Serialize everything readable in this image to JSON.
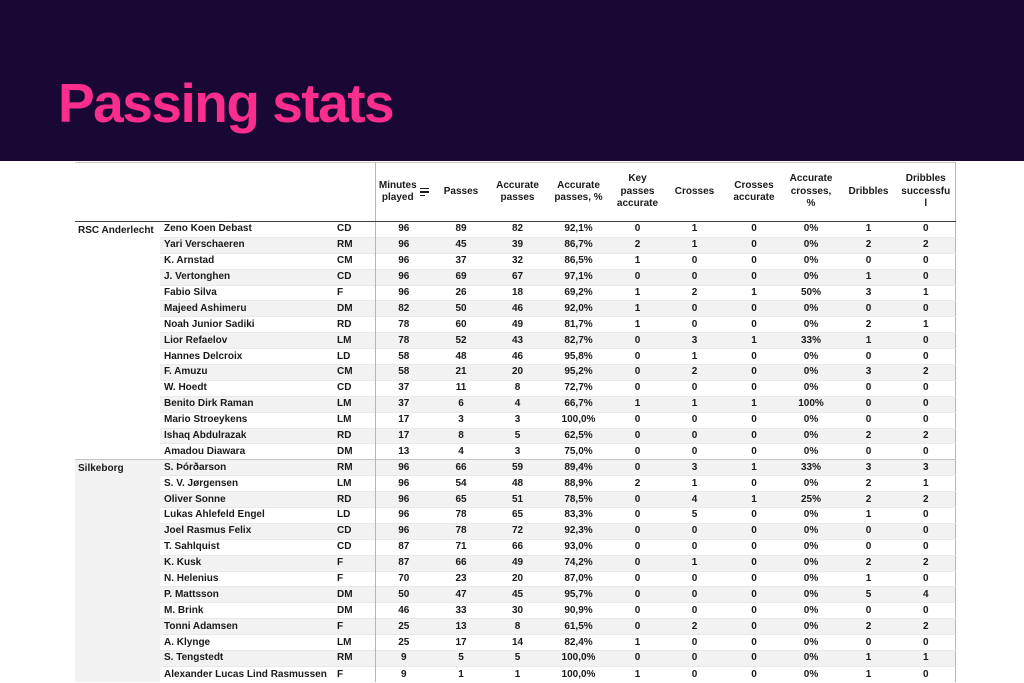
{
  "title": "Passing stats",
  "colors": {
    "banner_bg": "#190833",
    "title_text": "#fb2e8e",
    "table_text": "#1a1a1a",
    "row_stripe": "#f2f2f2",
    "table_border": "#b5b5b5"
  },
  "icons": {
    "sort": "sort-descending-bars"
  },
  "chart_data": {
    "type": "table",
    "title": "Passing stats",
    "sorted_column": "Minutes played",
    "sort_direction": "descending",
    "columns": [
      "Minutes played",
      "Passes",
      "Accurate passes",
      "Accurate passes, %",
      "Key passes accurate",
      "Crosses",
      "Crosses accurate",
      "Accurate crosses, %",
      "Dribbles",
      "Dribbles successful"
    ],
    "groups": [
      {
        "team": "RSC Anderlecht",
        "players": [
          {
            "name": "Zeno Koen Debast",
            "pos": "CD",
            "values": [
              "96",
              "89",
              "82",
              "92,1%",
              "0",
              "1",
              "0",
              "0%",
              "1",
              "0"
            ]
          },
          {
            "name": "Yari Verschaeren",
            "pos": "RM",
            "values": [
              "96",
              "45",
              "39",
              "86,7%",
              "2",
              "1",
              "0",
              "0%",
              "2",
              "2"
            ]
          },
          {
            "name": "K. Arnstad",
            "pos": "CM",
            "values": [
              "96",
              "37",
              "32",
              "86,5%",
              "1",
              "0",
              "0",
              "0%",
              "0",
              "0"
            ]
          },
          {
            "name": "J. Vertonghen",
            "pos": "CD",
            "values": [
              "96",
              "69",
              "67",
              "97,1%",
              "0",
              "0",
              "0",
              "0%",
              "1",
              "0"
            ]
          },
          {
            "name": "Fabio Silva",
            "pos": "F",
            "values": [
              "96",
              "26",
              "18",
              "69,2%",
              "1",
              "2",
              "1",
              "50%",
              "3",
              "1"
            ]
          },
          {
            "name": "Majeed Ashimeru",
            "pos": "DM",
            "values": [
              "82",
              "50",
              "46",
              "92,0%",
              "1",
              "0",
              "0",
              "0%",
              "0",
              "0"
            ]
          },
          {
            "name": "Noah Junior Sadiki",
            "pos": "RD",
            "values": [
              "78",
              "60",
              "49",
              "81,7%",
              "1",
              "0",
              "0",
              "0%",
              "2",
              "1"
            ]
          },
          {
            "name": "Lior Refaelov",
            "pos": "LM",
            "values": [
              "78",
              "52",
              "43",
              "82,7%",
              "0",
              "3",
              "1",
              "33%",
              "1",
              "0"
            ]
          },
          {
            "name": "Hannes Delcroix",
            "pos": "LD",
            "values": [
              "58",
              "48",
              "46",
              "95,8%",
              "0",
              "1",
              "0",
              "0%",
              "0",
              "0"
            ]
          },
          {
            "name": "F. Amuzu",
            "pos": "CM",
            "values": [
              "58",
              "21",
              "20",
              "95,2%",
              "0",
              "2",
              "0",
              "0%",
              "3",
              "2"
            ]
          },
          {
            "name": "W. Hoedt",
            "pos": "CD",
            "values": [
              "37",
              "11",
              "8",
              "72,7%",
              "0",
              "0",
              "0",
              "0%",
              "0",
              "0"
            ]
          },
          {
            "name": "Benito Dirk Raman",
            "pos": "LM",
            "values": [
              "37",
              "6",
              "4",
              "66,7%",
              "1",
              "1",
              "1",
              "100%",
              "0",
              "0"
            ]
          },
          {
            "name": "Mario Stroeykens",
            "pos": "LM",
            "values": [
              "17",
              "3",
              "3",
              "100,0%",
              "0",
              "0",
              "0",
              "0%",
              "0",
              "0"
            ]
          },
          {
            "name": "Ishaq Abdulrazak",
            "pos": "RD",
            "values": [
              "17",
              "8",
              "5",
              "62,5%",
              "0",
              "0",
              "0",
              "0%",
              "2",
              "2"
            ]
          },
          {
            "name": "Amadou Diawara",
            "pos": "DM",
            "values": [
              "13",
              "4",
              "3",
              "75,0%",
              "0",
              "0",
              "0",
              "0%",
              "0",
              "0"
            ]
          }
        ]
      },
      {
        "team": "Silkeborg",
        "players": [
          {
            "name": "S. Þórðarson",
            "pos": "RM",
            "values": [
              "96",
              "66",
              "59",
              "89,4%",
              "0",
              "3",
              "1",
              "33%",
              "3",
              "3"
            ]
          },
          {
            "name": "S. V. Jørgensen",
            "pos": "LM",
            "values": [
              "96",
              "54",
              "48",
              "88,9%",
              "2",
              "1",
              "0",
              "0%",
              "2",
              "1"
            ]
          },
          {
            "name": "Oliver Sonne",
            "pos": "RD",
            "values": [
              "96",
              "65",
              "51",
              "78,5%",
              "0",
              "4",
              "1",
              "25%",
              "2",
              "2"
            ]
          },
          {
            "name": "Lukas Ahlefeld Engel",
            "pos": "LD",
            "values": [
              "96",
              "78",
              "65",
              "83,3%",
              "0",
              "5",
              "0",
              "0%",
              "1",
              "0"
            ]
          },
          {
            "name": "Joel Rasmus Felix",
            "pos": "CD",
            "values": [
              "96",
              "78",
              "72",
              "92,3%",
              "0",
              "0",
              "0",
              "0%",
              "0",
              "0"
            ]
          },
          {
            "name": "T. Sahlquist",
            "pos": "CD",
            "values": [
              "87",
              "71",
              "66",
              "93,0%",
              "0",
              "0",
              "0",
              "0%",
              "0",
              "0"
            ]
          },
          {
            "name": "K. Kusk",
            "pos": "F",
            "values": [
              "87",
              "66",
              "49",
              "74,2%",
              "0",
              "1",
              "0",
              "0%",
              "2",
              "2"
            ]
          },
          {
            "name": "N. Helenius",
            "pos": "F",
            "values": [
              "70",
              "23",
              "20",
              "87,0%",
              "0",
              "0",
              "0",
              "0%",
              "1",
              "0"
            ]
          },
          {
            "name": "P. Mattsson",
            "pos": "DM",
            "values": [
              "50",
              "47",
              "45",
              "95,7%",
              "0",
              "0",
              "0",
              "0%",
              "5",
              "4"
            ]
          },
          {
            "name": "M. Brink",
            "pos": "DM",
            "values": [
              "46",
              "33",
              "30",
              "90,9%",
              "0",
              "0",
              "0",
              "0%",
              "0",
              "0"
            ]
          },
          {
            "name": "Tonni Adamsen",
            "pos": "F",
            "values": [
              "25",
              "13",
              "8",
              "61,5%",
              "0",
              "2",
              "0",
              "0%",
              "2",
              "2"
            ]
          },
          {
            "name": "A. Klynge",
            "pos": "LM",
            "values": [
              "25",
              "17",
              "14",
              "82,4%",
              "1",
              "0",
              "0",
              "0%",
              "0",
              "0"
            ]
          },
          {
            "name": "S. Tengstedt",
            "pos": "RM",
            "values": [
              "9",
              "5",
              "5",
              "100,0%",
              "0",
              "0",
              "0",
              "0%",
              "1",
              "1"
            ]
          },
          {
            "name": "Alexander Lucas Lind Rasmussen",
            "pos": "F",
            "values": [
              "9",
              "1",
              "1",
              "100,0%",
              "1",
              "0",
              "0",
              "0%",
              "1",
              "0"
            ]
          }
        ]
      }
    ]
  }
}
